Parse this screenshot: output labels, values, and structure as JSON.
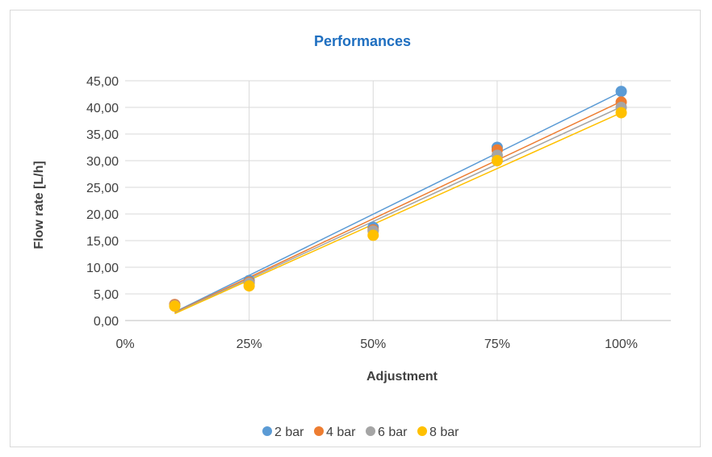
{
  "chart_data": {
    "type": "scatter",
    "title": "Performances",
    "xlabel": "Adjustment",
    "ylabel": "Flow rate [L/h]",
    "xlim": [
      0,
      1.1
    ],
    "ylim": [
      0,
      45
    ],
    "x_ticks": [
      {
        "value": 0,
        "label": "0%"
      },
      {
        "value": 0.25,
        "label": "25%"
      },
      {
        "value": 0.5,
        "label": "50%"
      },
      {
        "value": 0.75,
        "label": "75%"
      },
      {
        "value": 1.0,
        "label": "100%"
      }
    ],
    "y_ticks": [
      {
        "value": 0,
        "label": "0,00"
      },
      {
        "value": 5,
        "label": "5,00"
      },
      {
        "value": 10,
        "label": "10,00"
      },
      {
        "value": 15,
        "label": "15,00"
      },
      {
        "value": 20,
        "label": "20,00"
      },
      {
        "value": 25,
        "label": "25,00"
      },
      {
        "value": 30,
        "label": "30,00"
      },
      {
        "value": 35,
        "label": "35,00"
      },
      {
        "value": 40,
        "label": "40,00"
      },
      {
        "value": 45,
        "label": "45,00"
      }
    ],
    "grid": true,
    "legend_position": "bottom",
    "x": [
      0.1,
      0.25,
      0.5,
      0.75,
      1.0
    ],
    "series": [
      {
        "name": "2 bar",
        "color": "#5b9bd5",
        "values": [
          3.0,
          7.5,
          17.5,
          32.5,
          43.0
        ],
        "trendline": {
          "from": [
            0.1,
            1.6
          ],
          "to": [
            1.0,
            42.9
          ]
        }
      },
      {
        "name": "4 bar",
        "color": "#ed7d31",
        "values": [
          3.0,
          7.2,
          17.0,
          32.0,
          41.0
        ],
        "trendline": {
          "from": [
            0.1,
            1.5
          ],
          "to": [
            1.0,
            41.1
          ]
        }
      },
      {
        "name": "6 bar",
        "color": "#a5a5a5",
        "values": [
          2.8,
          7.0,
          16.8,
          31.0,
          40.0
        ],
        "trendline": {
          "from": [
            0.1,
            1.4
          ],
          "to": [
            1.0,
            40.1
          ]
        }
      },
      {
        "name": "8 bar",
        "color": "#ffc000",
        "values": [
          2.7,
          6.5,
          16.0,
          30.0,
          39.0
        ],
        "trendline": {
          "from": [
            0.1,
            1.3
          ],
          "to": [
            1.0,
            39.0
          ]
        }
      }
    ]
  }
}
